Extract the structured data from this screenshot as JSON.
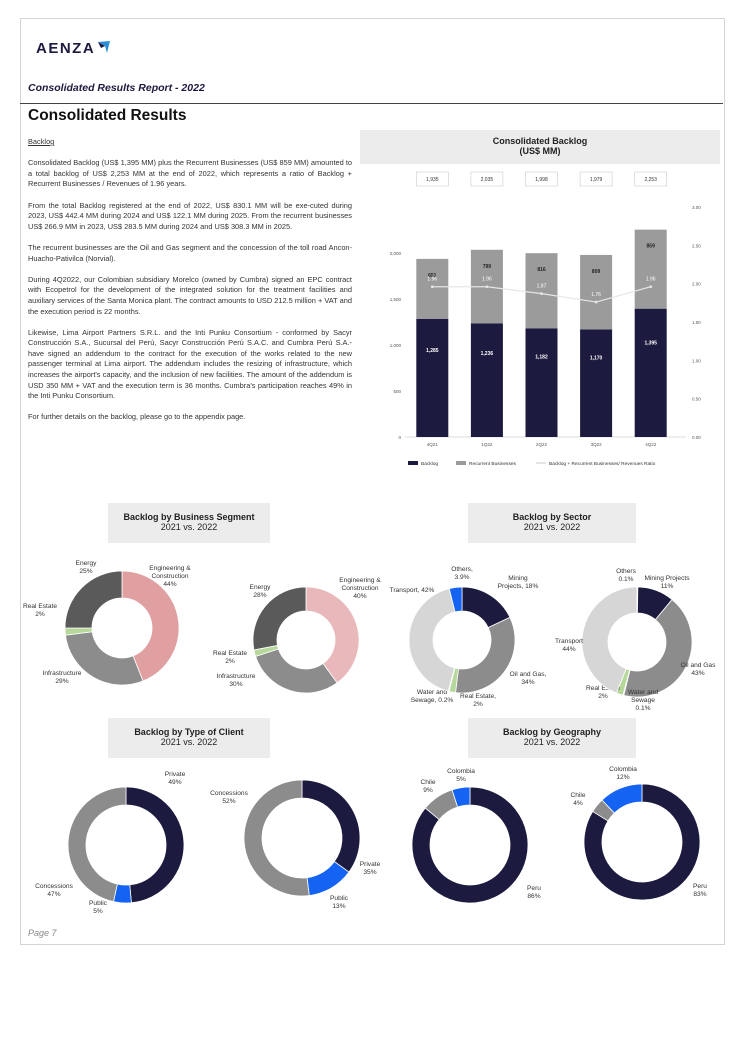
{
  "logo": {
    "text": "AENZA"
  },
  "report_title": "Consolidated Results Report - 2022",
  "section_title": "Consolidated Results",
  "body": {
    "subhead": "Backlog",
    "paragraphs": [
      "Consolidated Backlog (US$ 1,395 MM) plus the Recurrent Businesses (US$ 859 MM) amounted to a total backlog of US$ 2,253 MM at the end of 2022, which represents a ratio of Backlog + Recurrent Businesses / Revenues of 1.96 years.",
      "From the total Backlog registered at the end of 2022, US$ 830.1 MM will be exe-cuted during 2023, US$ 442.4 MM during 2024 and US$ 122.1 MM during 2025. From the recurrent businesses US$ 266.9 MM in 2023, US$ 283.5 MM during 2024 and US$ 308.3 MM in 2025.",
      "The recurrent businesses are the Oil and Gas segment and the concession of the toll road Ancon-Huacho-Pativilca (Norvial).",
      "During 4Q2022, our Colombian subsidiary Morelco (owned by Cumbra) signed an EPC contract with Ecopetrol for the development of the integrated solution for the treatment facilities and auxiliary services of the Santa Monica plant. The contract amounts to USD 212.5 million + VAT and the execution period is 22 months.",
      "Likewise, Lima Airport Partners S.R.L. and the Inti Punku Consortium - conformed by Sacyr Construcción S.A., Sucursal del Perú, Sacyr Construcción Perú S.A.C. and Cumbra Perú S.A.- have signed an addendum to the contract for the execution of the works related to the new passenger terminal at Lima airport. The addendum includes the resizing of infrastructure, which increases the airport's capacity, and the inclusion of new facilities. The amount of the addendum is USD 350 MM + VAT and the execution term is 36 months. Cumbra's participation reaches 49% in the Inti Punku Consortium.",
      "For further details on the backlog, please go to the appendix page."
    ]
  },
  "backlog_panel": {
    "title_line1": "Consolidated Backlog",
    "title_line2": "(US$ MM)"
  },
  "segment_panel": {
    "title": "Backlog by Business Segment",
    "subtitle": "2021 vs. 2022"
  },
  "sector_panel": {
    "title": "Backlog by Sector",
    "subtitle": "2021 vs. 2022"
  },
  "client_panel": {
    "title": "Backlog by Type of Client",
    "subtitle": "2021 vs. 2022"
  },
  "geo_panel": {
    "title": "Backlog by Geography",
    "subtitle": "2021 vs. 2022"
  },
  "page_number": "Page 7",
  "colors": {
    "navy": "#1c1a3e",
    "gray_dark": "#5a5a5a",
    "gray_mid": "#8c8c8c",
    "gray_light": "#d6d6d6",
    "pink": "#e0a0a2",
    "pink_light": "#e8b8ba",
    "green": "#b6d89a",
    "blue": "#1463f2"
  },
  "chart_data": [
    {
      "type": "bar",
      "subtype": "stacked-bar-with-line",
      "title": "Consolidated Backlog (US$ MM)",
      "categories": [
        "4Q21",
        "1Q22",
        "2Q22",
        "3Q22",
        "4Q22"
      ],
      "totals": [
        "1,935",
        "2,035",
        "1,998",
        "1,979",
        "2,253"
      ],
      "series": [
        {
          "name": "Backlog",
          "values": [
            1285,
            1236,
            1182,
            1170,
            1395
          ],
          "labels": [
            "1,285",
            "1,236",
            "1,182",
            "1,170",
            "1,395"
          ]
        },
        {
          "name": "Recurrent Businesses",
          "values": [
            651,
            799,
            816,
            809,
            859
          ],
          "labels": [
            "651",
            "799",
            "816",
            "809",
            "859"
          ]
        },
        {
          "name": "Backlog + Recurrent Businesses/ Revenues Ratio",
          "axis": "right",
          "values": [
            1.96,
            1.96,
            1.87,
            1.76,
            1.96
          ],
          "labels": [
            "1.96",
            "1.96",
            "1.87",
            "1.76",
            "1.96"
          ]
        }
      ],
      "y_ticks": [
        "0",
        "500",
        "1,000",
        "1,500",
        "2,000"
      ],
      "y2_ticks": [
        "0.00",
        "0.50",
        "1.00",
        "1.50",
        "2.00",
        "2.50",
        "3.00"
      ],
      "ylim": [
        0,
        2500
      ],
      "y2lim": [
        0,
        3.0
      ],
      "legend": "bottom"
    },
    {
      "type": "pie",
      "subtype": "donut",
      "panel": "segment",
      "year": "2021",
      "slices": [
        {
          "name": "Engineering & Construction",
          "value": 44,
          "label": "Engineering &|Construction|44%",
          "color": "#e0a0a2"
        },
        {
          "name": "Infrastructure",
          "value": 29,
          "label": "Infrastructure|29%",
          "color": "#8c8c8c"
        },
        {
          "name": "Real Estate",
          "value": 2,
          "label": "Real Estate|2%",
          "color": "#b6d89a"
        },
        {
          "name": "Energy",
          "value": 25,
          "label": "Energy|25%",
          "color": "#5a5a5a"
        }
      ]
    },
    {
      "type": "pie",
      "subtype": "donut",
      "panel": "segment",
      "year": "2022",
      "slices": [
        {
          "name": "Engineering & Construction",
          "value": 40,
          "label": "Engineering &|Construction|40%",
          "color": "#e8b8ba"
        },
        {
          "name": "Infrastructure",
          "value": 30,
          "label": "Infrastructure|30%",
          "color": "#8c8c8c"
        },
        {
          "name": "Real Estate",
          "value": 2,
          "label": "Real Estate|2%",
          "color": "#b6d89a"
        },
        {
          "name": "Energy",
          "value": 28,
          "label": "Energy|28%",
          "color": "#5a5a5a"
        }
      ]
    },
    {
      "type": "pie",
      "subtype": "donut",
      "panel": "sector",
      "year": "2021",
      "slices": [
        {
          "name": "Mining Projects",
          "value": 18,
          "label": "Mining|Projects, 18%",
          "color": "#1c1a3e"
        },
        {
          "name": "Oil and Gas",
          "value": 34,
          "label": "Oil and Gas,|34%",
          "color": "#8c8c8c"
        },
        {
          "name": "Real Estate",
          "value": 2,
          "label": "Real Estate,|2%",
          "color": "#b6d89a"
        },
        {
          "name": "Water and Sewage",
          "value": 0.2,
          "label": "Water and|Sewage, 0.2%",
          "color": "#5a5a5a"
        },
        {
          "name": "Transport",
          "value": 42,
          "label": "Transport, 42%",
          "color": "#d6d6d6"
        },
        {
          "name": "Others",
          "value": 3.9,
          "label": "Others,|3.9%",
          "color": "#1463f2"
        }
      ]
    },
    {
      "type": "pie",
      "subtype": "donut",
      "panel": "sector",
      "year": "2022",
      "slices": [
        {
          "name": "Mining Projects",
          "value": 11,
          "label": "Mining Projects|11%",
          "color": "#1c1a3e"
        },
        {
          "name": "Oil and Gas",
          "value": 43,
          "label": "Oil and Gas|43%",
          "color": "#8c8c8c"
        },
        {
          "name": "Water and Sewage",
          "value": 0.1,
          "label": "Water and|Sewage|0.1%",
          "color": "#5a5a5a"
        },
        {
          "name": "Real Estate",
          "value": 2,
          "label": "Real Estate|2%",
          "color": "#b6d89a"
        },
        {
          "name": "Transport",
          "value": 44,
          "label": "Transport|44%",
          "color": "#d6d6d6"
        },
        {
          "name": "Others",
          "value": 0.1,
          "label": "Others|0.1%",
          "color": "#1463f2"
        }
      ]
    },
    {
      "type": "pie",
      "subtype": "donut",
      "panel": "client",
      "year": "2021",
      "slices": [
        {
          "name": "Private",
          "value": 49,
          "label": "Private|49%",
          "color": "#1c1a3e"
        },
        {
          "name": "Public",
          "value": 5,
          "label": "Public|5%",
          "color": "#1463f2"
        },
        {
          "name": "Concessions",
          "value": 47,
          "label": "Concessions|47%",
          "color": "#8c8c8c"
        }
      ]
    },
    {
      "type": "pie",
      "subtype": "donut",
      "panel": "client",
      "year": "2022",
      "slices": [
        {
          "name": "Private",
          "value": 35,
          "label": "Private|35%",
          "color": "#1c1a3e"
        },
        {
          "name": "Public",
          "value": 13,
          "label": "Public|13%",
          "color": "#1463f2"
        },
        {
          "name": "Concessions",
          "value": 52,
          "label": "Concessions|52%",
          "color": "#8c8c8c"
        }
      ]
    },
    {
      "type": "pie",
      "subtype": "donut",
      "panel": "geography",
      "year": "2021",
      "slices": [
        {
          "name": "Peru",
          "value": 86,
          "label": "Peru|86%",
          "color": "#1c1a3e"
        },
        {
          "name": "Chile",
          "value": 9,
          "label": "Chile|9%",
          "color": "#8c8c8c"
        },
        {
          "name": "Colombia",
          "value": 5,
          "label": "Colombia|5%",
          "color": "#1463f2"
        }
      ]
    },
    {
      "type": "pie",
      "subtype": "donut",
      "panel": "geography",
      "year": "2022",
      "slices": [
        {
          "name": "Peru",
          "value": 83,
          "label": "Peru|83%",
          "color": "#1c1a3e"
        },
        {
          "name": "Chile",
          "value": 4,
          "label": "Chile|4%",
          "color": "#8c8c8c"
        },
        {
          "name": "Colombia",
          "value": 12,
          "label": "Colombia|12%",
          "color": "#1463f2"
        }
      ]
    }
  ]
}
